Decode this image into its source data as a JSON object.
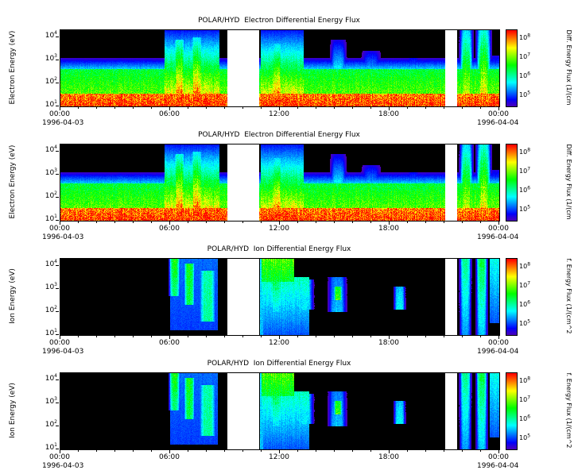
{
  "figure": {
    "mission": "POLAR/HYD",
    "background": "#ffffff"
  },
  "panels": [
    {
      "title": "POLAR/HYD  Electron Differential Energy Flux",
      "ylabel": "Electron Energy (eV)",
      "cb_label": "Diff. Energy Flux (1/(cm",
      "features": "electron"
    },
    {
      "title": "POLAR/HYD  Electron Differential Energy Flux",
      "ylabel": "Electron Energy (eV)",
      "cb_label": "Diff. Energy Flux (1/(cm",
      "features": "electron"
    },
    {
      "title": "POLAR/HYD  Ion Differential Energy Flux",
      "ylabel": "Ion Energy (eV)",
      "cb_label": "f. Energy Flux (1/(cm^2",
      "features": "ion"
    },
    {
      "title": "POLAR/HYD  Ion Differential Energy Flux",
      "ylabel": "Ion Energy (eV)",
      "cb_label": "f. Energy Flux (1/(cm^2",
      "features": "ion"
    }
  ],
  "axes": {
    "x_ticks": [
      "00:00",
      "06:00",
      "12:00",
      "18:00",
      "00:00"
    ],
    "x_start_date": "1996-04-03",
    "x_end_date": "1996-04-04"
  },
  "chart_data": {
    "type": "heatmap",
    "x_unit": "time (UT hours on 1996-04-03)",
    "x_range": [
      0,
      24
    ],
    "x_tick_hours": [
      0,
      6,
      12,
      18,
      24
    ],
    "y_unit": "energy (eV), log10 scale",
    "y_log10_range": [
      1.0,
      4.3
    ],
    "y_tick_log10": [
      1,
      2,
      3,
      4
    ],
    "color_unit": "differential energy flux, log10",
    "color_log10_range": [
      4.5,
      8.5
    ],
    "colorbar_tick_log10": [
      5,
      6,
      7,
      8
    ],
    "data_gaps_hours": [
      [
        9.15,
        10.85
      ],
      [
        21.05,
        21.7
      ]
    ],
    "colormap_stops": [
      "#000000",
      "#4b0082",
      "#0000ff",
      "#00ffff",
      "#00c800",
      "#ffff00",
      "#ff7f00",
      "#ff0000"
    ],
    "electron_features": [
      {
        "t0": 0,
        "t1": 24,
        "e0": 1.0,
        "e1": 1.55,
        "v": 0.95,
        "vt": 0.88
      },
      {
        "t0": 0,
        "t1": 24,
        "e0": 1.55,
        "e1": 2.6,
        "v": 0.62,
        "vt": 0.5
      },
      {
        "t0": 0,
        "t1": 24,
        "e0": 2.6,
        "e1": 3.1,
        "v": 0.3,
        "vt": 0.04
      },
      {
        "t0": 5.7,
        "t1": 8.7,
        "e0": 1.0,
        "e1": 4.3,
        "v": 0.88,
        "vt": 0.12
      },
      {
        "t0": 6.1,
        "t1": 6.9,
        "e0": 1.2,
        "e1": 3.9,
        "v": 1.0,
        "vt": 0.35,
        "s": 1
      },
      {
        "t0": 7.0,
        "t1": 7.9,
        "e0": 1.2,
        "e1": 4.0,
        "v": 1.0,
        "vt": 0.3,
        "s": 1
      },
      {
        "t0": 8.0,
        "t1": 8.6,
        "e0": 1.0,
        "e1": 4.0,
        "v": 0.85,
        "vt": 0.2,
        "s": 1
      },
      {
        "t0": 10.95,
        "t1": 13.3,
        "e0": 1.0,
        "e1": 4.3,
        "v": 0.85,
        "vt": 0.12
      },
      {
        "t0": 11.4,
        "t1": 12.3,
        "e0": 1.1,
        "e1": 3.7,
        "v": 1.0,
        "vt": 0.3,
        "s": 1
      },
      {
        "t0": 12.4,
        "t1": 13.1,
        "e0": 1.1,
        "e1": 3.3,
        "v": 0.9,
        "vt": 0.25,
        "s": 1
      },
      {
        "t0": 14.7,
        "t1": 15.7,
        "e0": 1.5,
        "e1": 3.9,
        "v": 0.55,
        "vt": 0.08,
        "s": 1
      },
      {
        "t0": 16.4,
        "t1": 17.6,
        "e0": 1.5,
        "e1": 3.4,
        "v": 0.5,
        "vt": 0.08,
        "s": 1
      },
      {
        "t0": 18.9,
        "t1": 19.7,
        "e0": 1.5,
        "e1": 3.1,
        "v": 0.5,
        "vt": 0.1,
        "s": 1
      },
      {
        "t0": 21.8,
        "t1": 22.6,
        "e0": 1.0,
        "e1": 4.3,
        "v": 0.85,
        "vt": 0.3,
        "s": 1
      },
      {
        "t0": 22.7,
        "t1": 23.6,
        "e0": 1.0,
        "e1": 4.3,
        "v": 0.88,
        "vt": 0.35,
        "s": 1
      },
      {
        "t0": 23.6,
        "t1": 24.0,
        "e0": 1.0,
        "e1": 3.2,
        "v": 0.5,
        "vt": 0.08
      }
    ],
    "ion_features": [
      {
        "t0": 5.9,
        "t1": 6.6,
        "e0": 2.7,
        "e1": 4.3,
        "v": 0.42,
        "vt": 0.55,
        "s": 1
      },
      {
        "t0": 6.7,
        "t1": 7.4,
        "e0": 2.3,
        "e1": 4.1,
        "v": 0.48,
        "vt": 0.55,
        "s": 1
      },
      {
        "t0": 7.5,
        "t1": 8.6,
        "e0": 1.6,
        "e1": 3.8,
        "v": 0.42,
        "vt": 0.4,
        "s": 1
      },
      {
        "t0": 6.0,
        "t1": 8.6,
        "e0": 1.2,
        "e1": 4.3,
        "v": 0.16,
        "vt": 0.2
      },
      {
        "t0": 10.9,
        "t1": 11.1,
        "e0": 1.0,
        "e1": 4.3,
        "v": 0.28,
        "vt": 0.32
      },
      {
        "t0": 11.0,
        "t1": 12.8,
        "e0": 3.3,
        "e1": 4.3,
        "v": 0.5,
        "vt": 0.62
      },
      {
        "t0": 11.0,
        "t1": 13.6,
        "e0": 1.0,
        "e1": 3.5,
        "v": 0.18,
        "vt": 0.4
      },
      {
        "t0": 11.3,
        "t1": 12.3,
        "e0": 2.0,
        "e1": 4.1,
        "v": 0.3,
        "vt": 0.58,
        "s": 1
      },
      {
        "t0": 12.8,
        "t1": 13.9,
        "e0": 2.1,
        "e1": 3.4,
        "v": 0.32,
        "vt": 0.3,
        "s": 1
      },
      {
        "t0": 14.6,
        "t1": 15.7,
        "e0": 2.0,
        "e1": 3.5,
        "v": 0.28,
        "vt": 0.22,
        "s": 1
      },
      {
        "t0": 14.9,
        "t1": 15.45,
        "e0": 2.5,
        "e1": 3.1,
        "v": 0.62,
        "vt": 0.55,
        "s": 1
      },
      {
        "t0": 18.2,
        "t1": 18.9,
        "e0": 2.1,
        "e1": 3.1,
        "v": 0.35,
        "vt": 0.28,
        "s": 1
      },
      {
        "t0": 21.8,
        "t1": 22.5,
        "e0": 1.0,
        "e1": 4.3,
        "v": 0.25,
        "vt": 0.45,
        "s": 1
      },
      {
        "t0": 22.7,
        "t1": 23.4,
        "e0": 1.0,
        "e1": 4.3,
        "v": 0.28,
        "vt": 0.5,
        "s": 1
      },
      {
        "t0": 23.5,
        "t1": 24.0,
        "e0": 1.5,
        "e1": 4.3,
        "v": 0.18,
        "vt": 0.35
      }
    ]
  }
}
